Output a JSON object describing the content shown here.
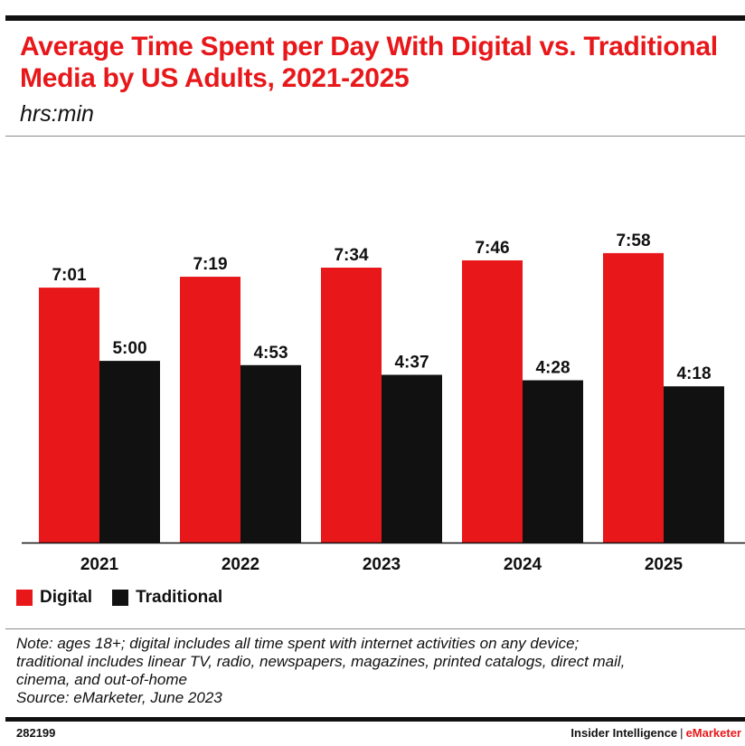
{
  "header": {
    "title": "Average Time Spent per Day With Digital vs. Traditional Media by US Adults, 2021-2025",
    "subtitle": "hrs:min"
  },
  "chart_data": {
    "type": "bar",
    "title": "Average Time Spent per Day With Digital vs. Traditional Media by US Adults, 2021-2025",
    "subtitle": "hrs:min",
    "categories": [
      "2021",
      "2022",
      "2023",
      "2024",
      "2025"
    ],
    "series": [
      {
        "name": "Digital",
        "color": "#e8171a",
        "values": [
          7.0167,
          7.3167,
          7.5667,
          7.7667,
          7.9667
        ],
        "labels": [
          "7:01",
          "7:19",
          "7:34",
          "7:46",
          "7:58"
        ]
      },
      {
        "name": "Traditional",
        "color": "#111111",
        "values": [
          5.0,
          4.8833,
          4.6167,
          4.4667,
          4.3
        ],
        "labels": [
          "5:00",
          "4:53",
          "4:37",
          "4:28",
          "4:18"
        ]
      }
    ],
    "ylim": [
      0,
      11.2
    ],
    "grid": false,
    "legend": "bottom-left"
  },
  "notes": {
    "lines": [
      "Note: ages 18+; digital includes all time spent with internet activities on any device;",
      "traditional includes linear TV, radio, newspapers, magazines, printed catalogs, direct mail,",
      "cinema, and out-of-home",
      "Source: eMarketer, June 2023"
    ]
  },
  "footer": {
    "id": "282199",
    "brand_left": "Insider Intelligence",
    "separator": "|",
    "brand_right": "eMarketer"
  }
}
